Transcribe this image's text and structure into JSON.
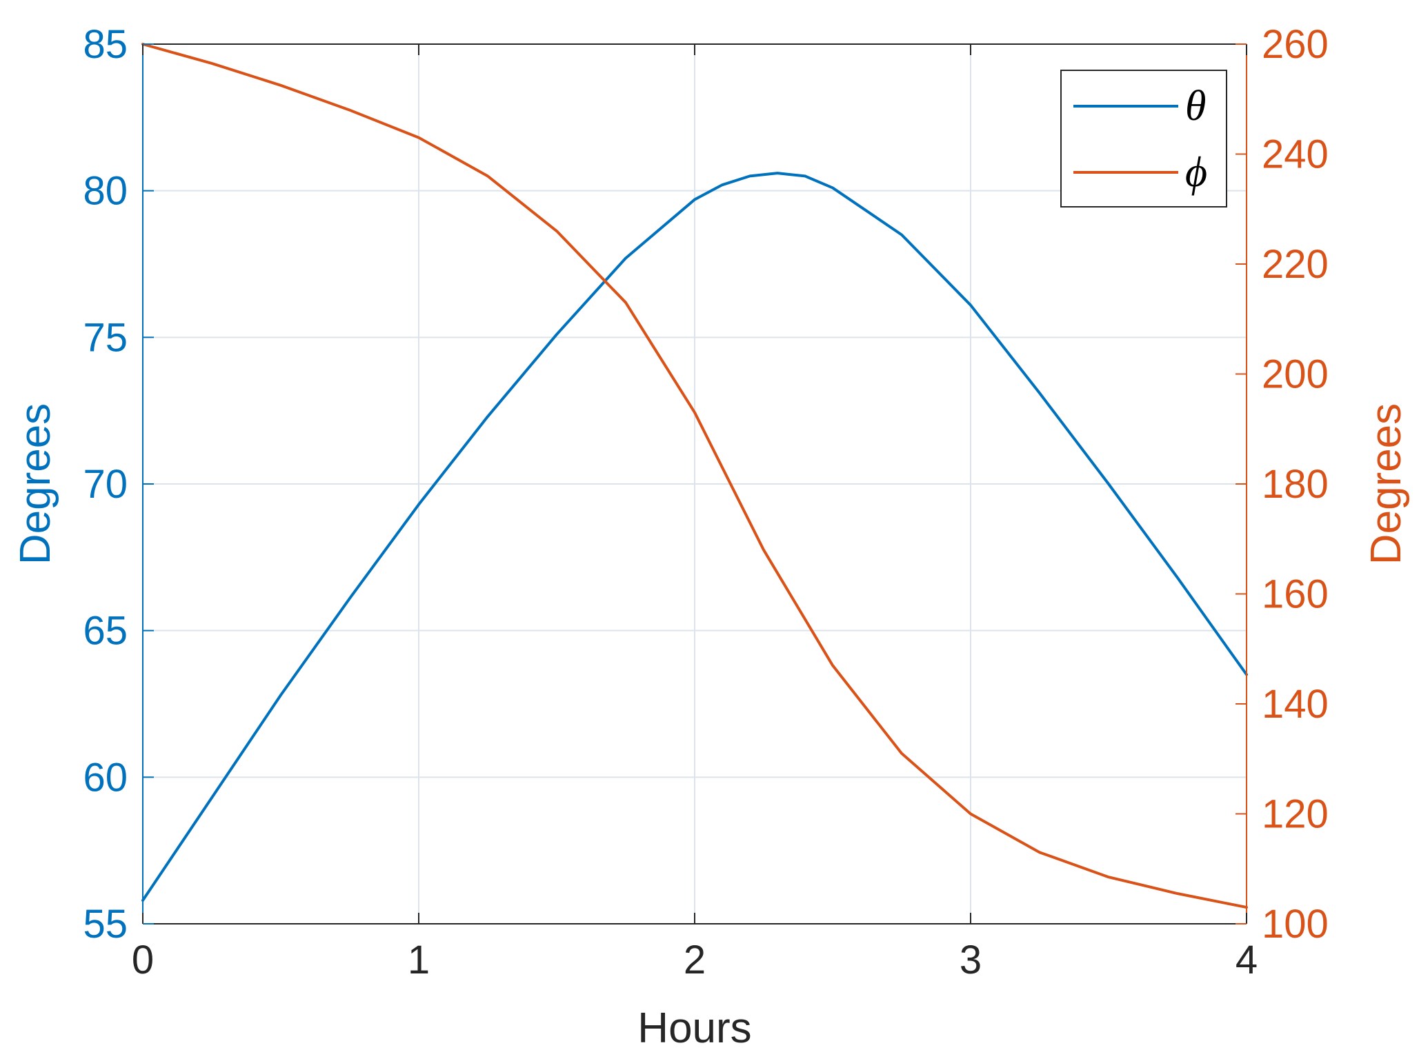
{
  "colors": {
    "left_axis": "#0072BD",
    "right_axis": "#D95319",
    "grid": "#DCE3EA",
    "axis_dark": "#262626",
    "background": "#FFFFFF"
  },
  "chart_data": {
    "type": "line",
    "xlabel": "Hours",
    "ylabel_left": "Degrees",
    "ylabel_right": "Degrees",
    "xlim": [
      0,
      4
    ],
    "ylim_left": [
      55,
      85
    ],
    "ylim_right": [
      100,
      260
    ],
    "xticks": [
      0,
      1,
      2,
      3,
      4
    ],
    "yticks_left": [
      55,
      60,
      65,
      70,
      75,
      80,
      85
    ],
    "yticks_right": [
      100,
      120,
      140,
      160,
      180,
      200,
      220,
      240,
      260
    ],
    "grid": true,
    "legend_position": "top-right",
    "series": [
      {
        "name": "θ",
        "axis": "left",
        "color": "#0072BD",
        "x": [
          0,
          0.25,
          0.5,
          0.75,
          1.0,
          1.25,
          1.5,
          1.75,
          2.0,
          2.1,
          2.2,
          2.3,
          2.4,
          2.5,
          2.75,
          3.0,
          3.25,
          3.5,
          3.75,
          4.0
        ],
        "y": [
          55.8,
          59.3,
          62.8,
          66.1,
          69.3,
          72.3,
          75.1,
          77.7,
          79.7,
          80.2,
          80.5,
          80.6,
          80.5,
          80.1,
          78.5,
          76.1,
          73.1,
          70.0,
          66.8,
          63.5
        ]
      },
      {
        "name": "ϕ",
        "axis": "right",
        "color": "#D95319",
        "x": [
          0,
          0.25,
          0.5,
          0.75,
          1.0,
          1.25,
          1.5,
          1.75,
          2.0,
          2.25,
          2.5,
          2.75,
          3.0,
          3.25,
          3.5,
          3.75,
          4.0
        ],
        "y": [
          260,
          256.5,
          252.5,
          248,
          243,
          236,
          226,
          213,
          193,
          168,
          147,
          131,
          120,
          113,
          108.5,
          105.5,
          103
        ]
      }
    ]
  }
}
